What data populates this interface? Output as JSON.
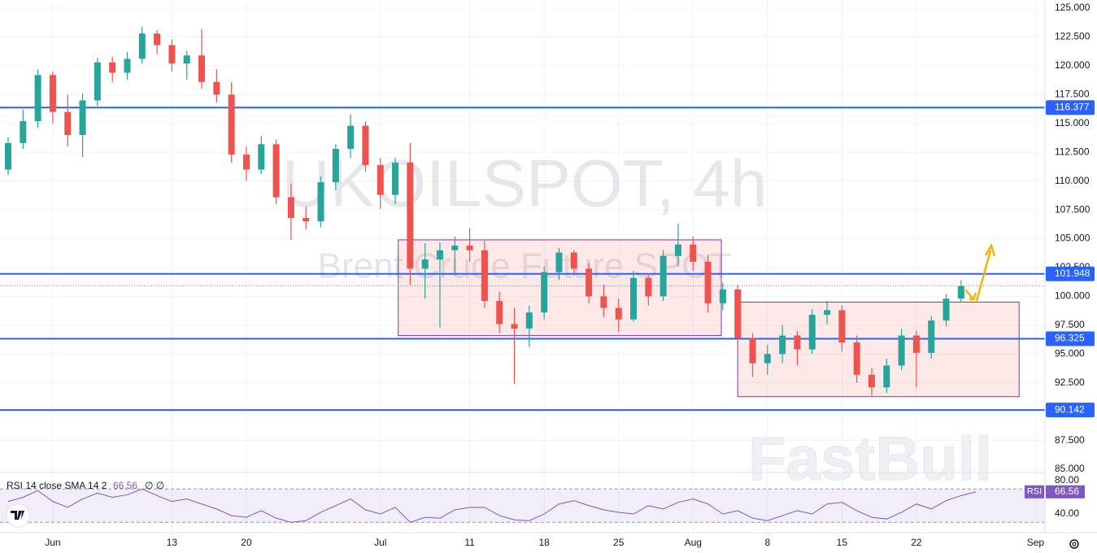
{
  "chart_data": {
    "type": "candlestick",
    "watermark": {
      "symbol": "UKOILSPOT, 4h",
      "description": "Brent Crude Future SPOT"
    },
    "brand": "FastBull",
    "up_color": "#26a69a",
    "down_color": "#ef5350",
    "grid": true,
    "categories": [
      null,
      null,
      null,
      "Jun",
      null,
      null,
      null,
      null,
      null,
      null,
      null,
      "13",
      null,
      null,
      null,
      null,
      "20",
      null,
      null,
      null,
      null,
      null,
      null,
      null,
      null,
      "Jul",
      null,
      null,
      null,
      null,
      null,
      "11",
      null,
      null,
      null,
      null,
      "18",
      null,
      null,
      null,
      null,
      "25",
      null,
      null,
      null,
      null,
      "Aug",
      null,
      null,
      null,
      null,
      "8",
      null,
      null,
      null,
      null,
      "15",
      null,
      null,
      null,
      null,
      "22",
      null,
      null,
      null,
      null,
      null,
      null,
      null,
      "Sep"
    ],
    "open": [
      111,
      113.3,
      115.2,
      119.2,
      116.0,
      114.0,
      117.0,
      120.3,
      119.4,
      120.6,
      122.8,
      121.8,
      120.2,
      120.9,
      118.6,
      117.5,
      112.3,
      111.0,
      113.2,
      108.6,
      106.8,
      106.5,
      109.9,
      112.8,
      114.8,
      111.4,
      108.8,
      111.6,
      102.4,
      103.2,
      104.0,
      104.4,
      104.0,
      99.6,
      97.6,
      97.2,
      98.6,
      102.1,
      103.8,
      102.4,
      100.0,
      99.0,
      98.0,
      101.6,
      100.0,
      103.5,
      104.5,
      103.0,
      99.4,
      100.6,
      96.4,
      94.2,
      95.0,
      96.6,
      95.4,
      98.4,
      98.8,
      96.0,
      93.2,
      92.1,
      94.0,
      96.6,
      95.1,
      97.9,
      99.8,
      null,
      null,
      null,
      null,
      null
    ],
    "high": [
      113.8,
      116.2,
      119.7,
      119.5,
      117.5,
      117.6,
      120.7,
      120.8,
      121.2,
      123.4,
      123.1,
      122.3,
      121.3,
      123.2,
      119.7,
      118.6,
      113.0,
      113.9,
      113.6,
      109.8,
      107.8,
      110.4,
      113.2,
      115.8,
      115.2,
      112.0,
      112.0,
      113.3,
      104.6,
      104.7,
      105.2,
      105.9,
      104.8,
      100.4,
      99.0,
      99.2,
      102.6,
      104.2,
      104.0,
      102.9,
      101.0,
      99.8,
      102.2,
      102.0,
      104.0,
      106.3,
      105.2,
      103.6,
      101.2,
      101.0,
      96.8,
      95.8,
      97.5,
      97.0,
      98.9,
      99.6,
      99.2,
      96.6,
      93.8,
      94.6,
      97.2,
      97.0,
      98.3,
      100.2,
      101.4,
      null,
      null,
      null,
      null,
      null
    ],
    "low": [
      110.5,
      112.8,
      114.6,
      115.0,
      113.0,
      112.1,
      116.5,
      118.6,
      118.8,
      120.2,
      121.0,
      119.5,
      118.8,
      118.0,
      116.8,
      111.6,
      110.0,
      110.6,
      108.0,
      104.9,
      105.8,
      106.0,
      109.2,
      112.0,
      110.8,
      107.6,
      108.0,
      101.0,
      99.8,
      97.3,
      101.8,
      103.0,
      99.0,
      96.8,
      92.4,
      95.6,
      98.0,
      101.4,
      101.8,
      99.4,
      98.2,
      96.9,
      97.8,
      99.2,
      99.6,
      102.6,
      102.2,
      98.6,
      98.8,
      95.8,
      93.0,
      93.2,
      94.2,
      94.0,
      95.0,
      97.6,
      95.2,
      92.5,
      91.4,
      91.6,
      93.6,
      92.1,
      94.6,
      97.4,
      99.5,
      null,
      null,
      null,
      null,
      null
    ],
    "close": [
      113.3,
      115.2,
      119.2,
      116.0,
      114.0,
      117.0,
      120.3,
      119.4,
      120.6,
      122.8,
      121.8,
      120.2,
      120.9,
      118.6,
      117.5,
      112.3,
      111.0,
      113.2,
      108.6,
      106.8,
      106.5,
      109.9,
      112.8,
      114.8,
      111.4,
      108.8,
      111.6,
      102.4,
      103.2,
      104.0,
      104.4,
      104.0,
      99.6,
      97.6,
      97.2,
      98.6,
      102.1,
      103.8,
      102.4,
      100.0,
      99.0,
      98.0,
      101.6,
      100.0,
      103.5,
      104.5,
      103.0,
      99.4,
      100.6,
      96.4,
      94.2,
      95.0,
      96.6,
      95.4,
      98.4,
      98.8,
      96.0,
      93.2,
      92.1,
      94.0,
      96.6,
      95.1,
      97.9,
      99.8,
      100.9,
      null,
      null,
      null,
      null,
      null
    ],
    "ylim": [
      84.79,
      125.71
    ],
    "yticks": [
      {
        "value": 85,
        "label": "85.000"
      },
      {
        "value": 87.5,
        "label": "87.500"
      },
      {
        "value": 90,
        "label": "90.000"
      },
      {
        "value": 92.5,
        "label": "92.500"
      },
      {
        "value": 95,
        "label": "95.000"
      },
      {
        "value": 97.5,
        "label": "97.500"
      },
      {
        "value": 100,
        "label": "100.000"
      },
      {
        "value": 102.5,
        "label": "102.500"
      },
      {
        "value": 105,
        "label": "105.000"
      },
      {
        "value": 107.5,
        "label": "107.500"
      },
      {
        "value": 110,
        "label": "110.000"
      },
      {
        "value": 112.5,
        "label": "112.500"
      },
      {
        "value": 115,
        "label": "115.000"
      },
      {
        "value": 117.5,
        "label": "117.500"
      },
      {
        "value": 120,
        "label": "120.000"
      },
      {
        "value": 122.5,
        "label": "122.500"
      },
      {
        "value": 125,
        "label": "125.000"
      }
    ],
    "levels": [
      {
        "value": 116.377,
        "color": "#2962ff"
      },
      {
        "value": 101.948,
        "color": "#2962ff"
      },
      {
        "value": 96.325,
        "color": "#2962ff"
      },
      {
        "value": 90.142,
        "color": "#2962ff"
      }
    ],
    "boxes": [
      {
        "top": 104.9,
        "bottom": 96.6,
        "x": [
          26.2,
          47.9
        ],
        "color": "#9c27b0"
      },
      {
        "top": 99.5,
        "bottom": 91.3,
        "x": [
          49.0,
          67.9
        ],
        "color": "#9c27b0"
      }
    ],
    "rsi": {
      "legend": "RSI 14 close SMA 14 2",
      "empty_values": "∅ ∅",
      "label": "RSI",
      "color": "#7e57c2",
      "values": [
        55,
        60,
        68,
        55,
        48,
        58,
        65,
        60,
        63,
        70,
        62,
        55,
        58,
        52,
        46,
        38,
        36,
        44,
        35,
        30,
        32,
        42,
        50,
        58,
        45,
        40,
        48,
        30,
        36,
        35,
        45,
        48,
        48,
        38,
        33,
        32,
        40,
        52,
        56,
        50,
        45,
        42,
        40,
        50,
        46,
        54,
        58,
        52,
        40,
        44,
        35,
        32,
        38,
        44,
        40,
        52,
        54,
        44,
        36,
        34,
        42,
        52,
        46,
        56,
        62,
        66.56,
        null,
        null,
        null,
        null
      ],
      "ylim": [
        17.6,
        87.8
      ],
      "yticks": [
        {
          "value": 80,
          "label": "80.00"
        },
        {
          "value": 40,
          "label": "40.00"
        }
      ],
      "band": [
        30,
        70
      ]
    }
  }
}
